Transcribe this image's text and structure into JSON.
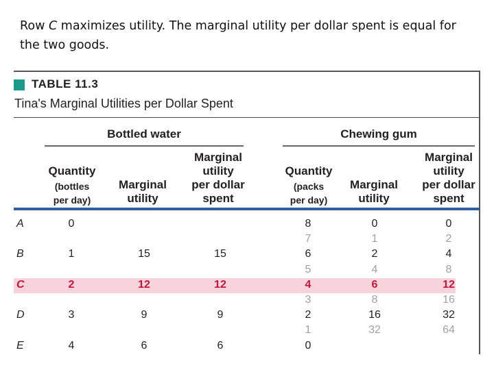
{
  "caption": {
    "prefix": "Row ",
    "row_letter": "C",
    "rest": " maximizes utility. The marginal utility per dollar spent is equal for the two goods."
  },
  "table": {
    "label": "TABLE 11.3",
    "title": "Tina's Marginal Utilities per Dollar Spent",
    "marker_color": "#1a9a8a",
    "highlight_color": "#f9d3dc",
    "highlight_text_color": "#c4163c",
    "groups": {
      "water": "Bottled water",
      "gum": "Chewing gum"
    },
    "headers": {
      "water_quantity": "Quantity",
      "water_quantity_sub1": "(bottles",
      "water_quantity_sub2": "per day)",
      "water_mu1": "Marginal",
      "water_mu2": "utility",
      "water_mud1": "Marginal",
      "water_mud2": "utility",
      "water_mud3": "per dollar",
      "water_mud4": "spent",
      "gum_quantity": "Quantity",
      "gum_quantity_sub1": "(packs",
      "gum_quantity_sub2": "per day)",
      "gum_mu1": "Marginal",
      "gum_mu2": "utility",
      "gum_mud1": "Marginal",
      "gum_mud2": "utility",
      "gum_mud3": "per dollar",
      "gum_mud4": "spent"
    },
    "rows": [
      {
        "label": "A",
        "water_qty": "0",
        "water_mu": "",
        "water_mud": "",
        "gum_qty": "8",
        "gum_mu": "0",
        "gum_mud": "0"
      },
      {
        "between": true,
        "gum_qty": "7",
        "gum_mu": "1",
        "gum_mud": "2"
      },
      {
        "label": "B",
        "water_qty": "1",
        "water_mu": "15",
        "water_mud": "15",
        "gum_qty": "6",
        "gum_mu": "2",
        "gum_mud": "4"
      },
      {
        "between": true,
        "gum_qty": "5",
        "gum_mu": "4",
        "gum_mud": "8"
      },
      {
        "label": "C",
        "water_qty": "2",
        "water_mu": "12",
        "water_mud": "12",
        "gum_qty": "4",
        "gum_mu": "6",
        "gum_mud": "12",
        "highlight": true
      },
      {
        "between": true,
        "gum_qty": "3",
        "gum_mu": "8",
        "gum_mud": "16"
      },
      {
        "label": "D",
        "water_qty": "3",
        "water_mu": "9",
        "water_mud": "9",
        "gum_qty": "2",
        "gum_mu": "16",
        "gum_mud": "32"
      },
      {
        "between": true,
        "gum_qty": "1",
        "gum_mu": "32",
        "gum_mud": "64"
      },
      {
        "label": "E",
        "water_qty": "4",
        "water_mu": "6",
        "water_mud": "6",
        "gum_qty": "0",
        "gum_mu": "",
        "gum_mud": ""
      }
    ]
  }
}
